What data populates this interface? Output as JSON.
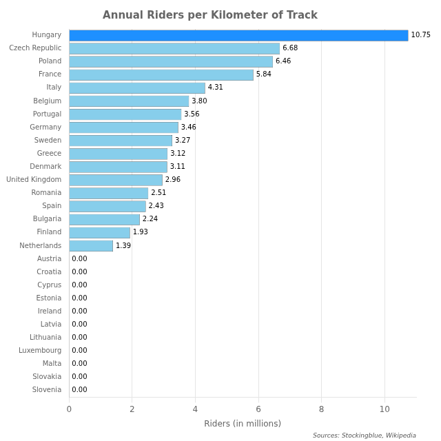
{
  "chart_data": {
    "type": "bar",
    "orientation": "horizontal",
    "title": "Annual Riders per Kilometer of Track",
    "xlabel": "Riders (in millions)",
    "annotations": [
      "Sources: Stockingblue, Wikipedia"
    ],
    "categories": [
      "Hungary",
      "Czech Republic",
      "Poland",
      "France",
      "Italy",
      "Belgium",
      "Portugal",
      "Germany",
      "Sweden",
      "Greece",
      "Denmark",
      "United Kingdom",
      "Romania",
      "Spain",
      "Bulgaria",
      "Finland",
      "Netherlands",
      "Austria",
      "Croatia",
      "Cyprus",
      "Estonia",
      "Ireland",
      "Latvia",
      "Lithuania",
      "Luxembourg",
      "Malta",
      "Slovakia",
      "Slovenia"
    ],
    "values": [
      10.75,
      6.68,
      6.46,
      5.84,
      4.31,
      3.8,
      3.56,
      3.46,
      3.27,
      3.12,
      3.11,
      2.96,
      2.51,
      2.43,
      2.24,
      1.93,
      1.39,
      0.0,
      0.0,
      0.0,
      0.0,
      0.0,
      0.0,
      0.0,
      0.0,
      0.0,
      0.0,
      0.0
    ],
    "value_labels": [
      "10.75",
      "6.68",
      "6.46",
      "5.84",
      "4.31",
      "3.80",
      "3.56",
      "3.46",
      "3.27",
      "3.12",
      "3.11",
      "2.96",
      "2.51",
      "2.43",
      "2.24",
      "1.93",
      "1.39",
      "0.00",
      "0.00",
      "0.00",
      "0.00",
      "0.00",
      "0.00",
      "0.00",
      "0.00",
      "0.00",
      "0.00",
      "0.00"
    ],
    "data_labels": true,
    "colors": [
      "#1e90ff",
      "#87ceeb",
      "#87ceeb",
      "#87ceeb",
      "#87ceeb",
      "#87ceeb",
      "#87ceeb",
      "#87ceeb",
      "#87ceeb",
      "#87ceeb",
      "#87ceeb",
      "#87ceeb",
      "#87ceeb",
      "#87ceeb",
      "#87ceeb",
      "#87ceeb",
      "#87ceeb",
      "#87ceeb",
      "#87ceeb",
      "#87ceeb",
      "#87ceeb",
      "#87ceeb",
      "#87ceeb",
      "#87ceeb",
      "#87ceeb",
      "#87ceeb",
      "#87ceeb",
      "#87ceeb"
    ],
    "xlim": [
      0,
      11
    ],
    "xticks": [
      0,
      2,
      4,
      6,
      8,
      10
    ],
    "grid": true
  }
}
